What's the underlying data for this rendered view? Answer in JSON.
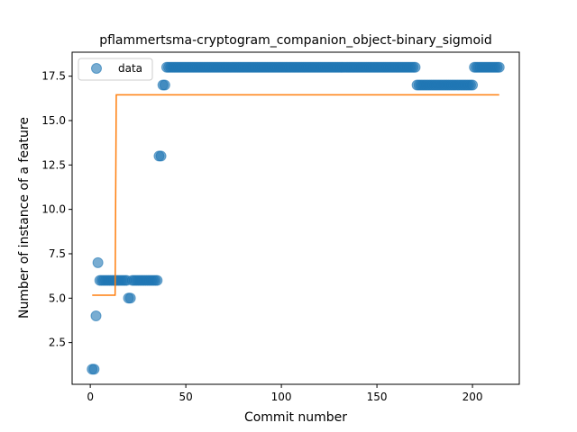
{
  "chart_data": {
    "type": "scatter",
    "title": "pflammertsma-cryptogram_companion_object-binary_sigmoid",
    "xlabel": "Commit number",
    "ylabel": "Number of instance of a feature",
    "xlim": [
      -9.5,
      224.5
    ],
    "ylim": [
      0.15,
      18.85
    ],
    "xticks": [
      0,
      50,
      100,
      150,
      200
    ],
    "yticks": [
      2.5,
      5.0,
      7.5,
      10.0,
      12.5,
      15.0,
      17.5
    ],
    "ytick_labels": [
      "2.5",
      "5.0",
      "7.5",
      "10.0",
      "12.5",
      "15.0",
      "17.5"
    ],
    "grid": false,
    "legend": {
      "position": "top-left",
      "entries": [
        "data"
      ]
    },
    "series": [
      {
        "name": "data",
        "kind": "scatter",
        "color": "#1f77b4",
        "segments": [
          {
            "x_from": 1,
            "x_to": 2,
            "y": 1
          },
          {
            "x_from": 3,
            "x_to": 3,
            "y": 4
          },
          {
            "x_from": 4,
            "x_to": 4,
            "y": 7
          },
          {
            "x_from": 5,
            "x_to": 19,
            "y": 6
          },
          {
            "x_from": 20,
            "x_to": 21,
            "y": 5
          },
          {
            "x_from": 22,
            "x_to": 35,
            "y": 6
          },
          {
            "x_from": 36,
            "x_to": 37,
            "y": 13
          },
          {
            "x_from": 38,
            "x_to": 39,
            "y": 17
          },
          {
            "x_from": 40,
            "x_to": 170,
            "y": 18
          },
          {
            "x_from": 171,
            "x_to": 200,
            "y": 17
          },
          {
            "x_from": 201,
            "x_to": 214,
            "y": 18
          }
        ]
      },
      {
        "name": "",
        "kind": "line",
        "color": "#ff7f0e",
        "points": [
          [
            1,
            5.17
          ],
          [
            13,
            5.17
          ],
          [
            13.6,
            16.45
          ],
          [
            214,
            16.45
          ]
        ]
      }
    ]
  }
}
